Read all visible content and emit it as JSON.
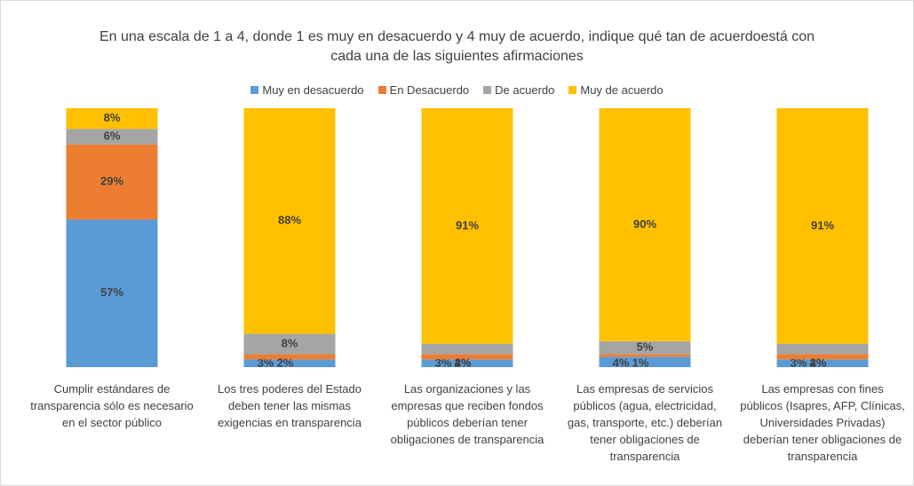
{
  "chart_data": {
    "type": "bar",
    "stacking": "percent",
    "title": "En una escala de 1 a 4, donde 1 es muy en desacuerdo y 4 muy de acuerdo, indique qué tan de acuerdoestá con cada una de las siguientes afirmaciones",
    "categories": [
      "Cumplir estándares de transparencia sólo es necesario en el sector público",
      "Los tres poderes del Estado deben tener las mismas exigencias en transparencia",
      "Las organizaciones y las empresas que reciben fondos públicos deberían tener obligaciones de transparencia",
      "Las empresas de servicios públicos (agua, electricidad, gas, transporte, etc.) deberían tener obligaciones de transparencia",
      "Las empresas con fines públicos (Isapres, AFP, Clínicas, Universidades Privadas) deberían tener obligaciones de transparencia"
    ],
    "series": [
      {
        "name": "Muy en desacuerdo",
        "color": "#5b9bd5",
        "values": [
          57,
          3,
          3,
          4,
          3
        ],
        "value_labels": [
          "57%",
          "3%",
          "3%",
          "4%",
          "3%"
        ]
      },
      {
        "name": "En Desacuerdo",
        "color": "#ed7d31",
        "values": [
          29,
          2,
          2,
          1,
          2
        ],
        "value_labels": [
          "29%",
          "2%",
          "2%",
          "1%",
          "2%"
        ]
      },
      {
        "name": "De acuerdo",
        "color": "#a5a5a5",
        "values": [
          6,
          8,
          4,
          5,
          4
        ],
        "value_labels": [
          "6%",
          "8%",
          "4%",
          "5%",
          "4%"
        ]
      },
      {
        "name": "Muy de acuerdo",
        "color": "#ffc000",
        "values": [
          8,
          88,
          91,
          90,
          91
        ],
        "value_labels": [
          "8%",
          "88%",
          "91%",
          "90%",
          "91%"
        ]
      }
    ],
    "legend": "top"
  }
}
